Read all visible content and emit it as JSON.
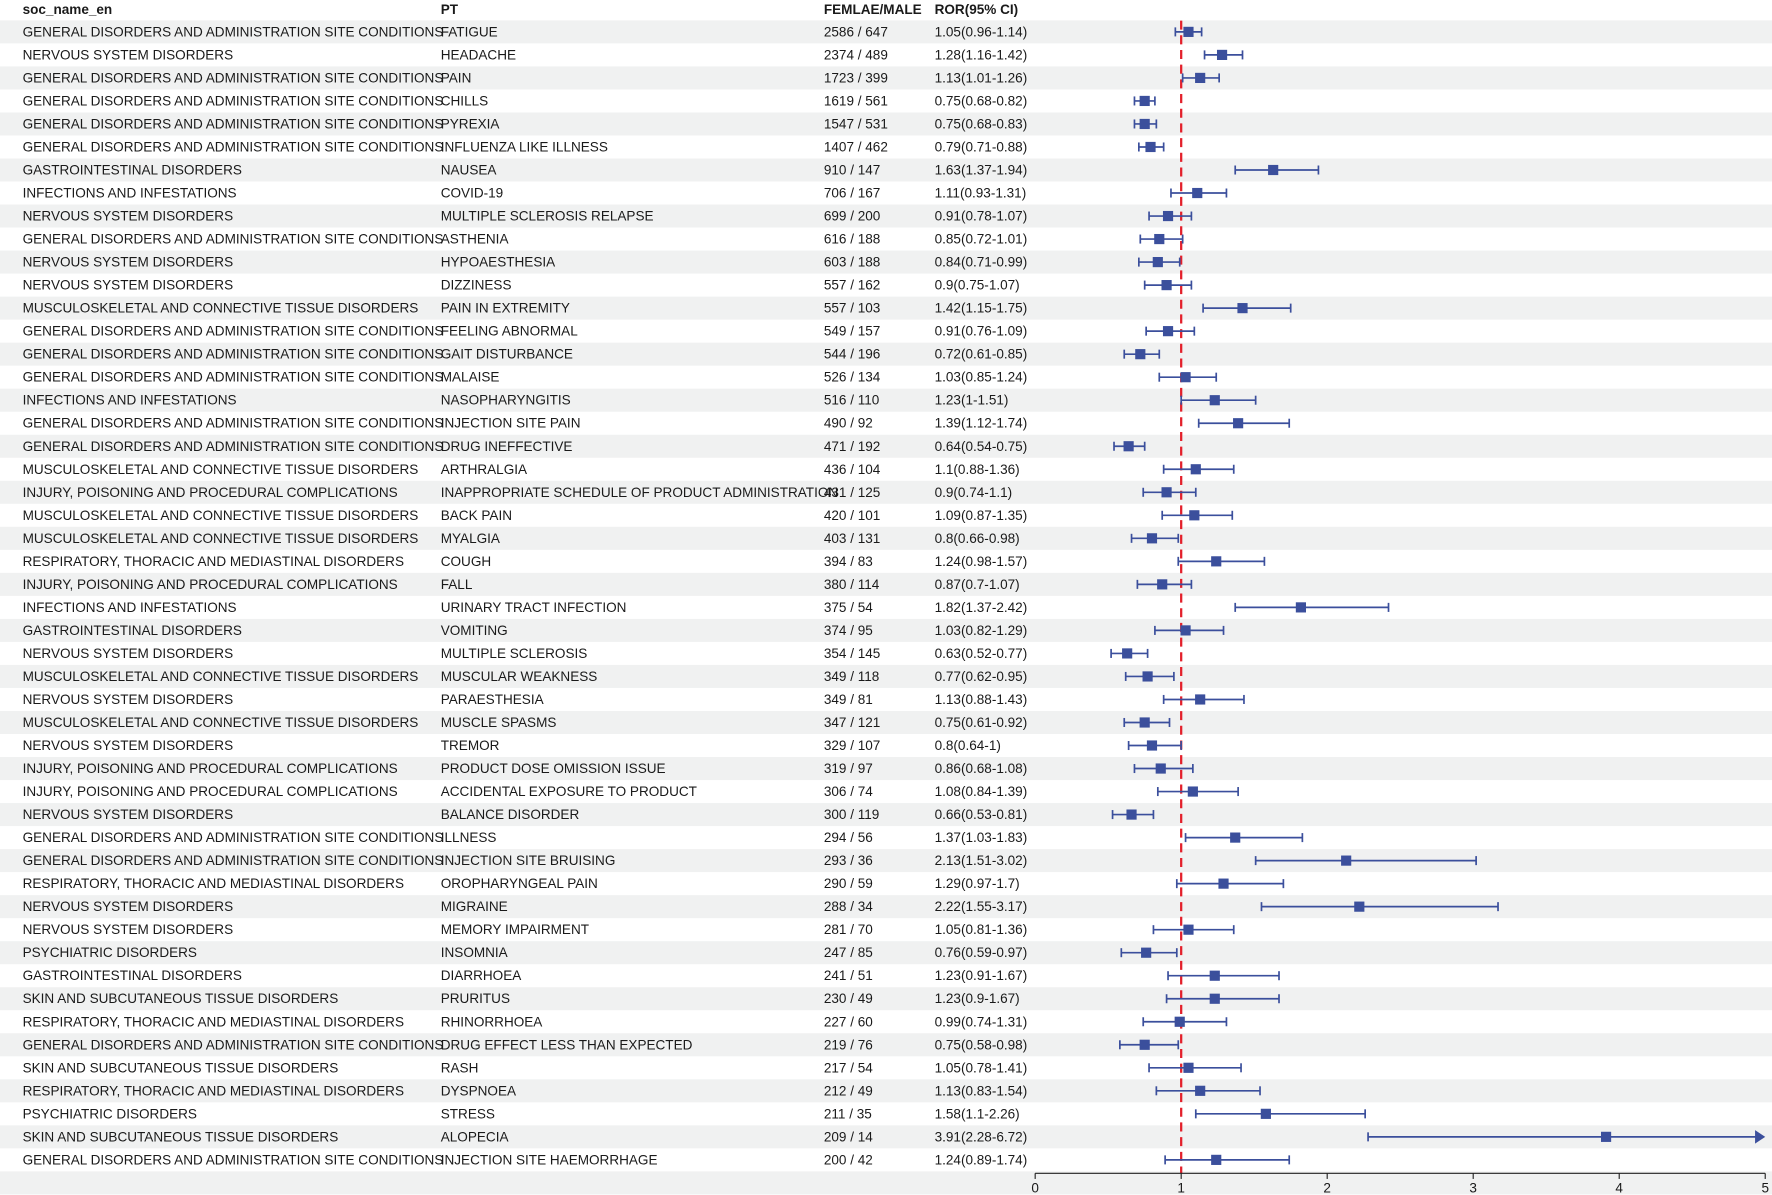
{
  "chart_data": {
    "type": "forest",
    "columns": [
      "soc_name_en",
      "PT",
      "FEMLAE/MALE",
      "ROR(95% CI)"
    ],
    "reference_line": 1,
    "xlim": [
      0,
      5
    ],
    "xticks": [
      "0",
      "1",
      "2",
      "3",
      "4",
      "5"
    ],
    "colors": {
      "point": "#3b4f9c",
      "reference": "#e3202b",
      "band": "#f0f1f1"
    },
    "rows": [
      {
        "soc": "GENERAL DISORDERS AND ADMINISTRATION SITE CONDITIONS",
        "pt": "FATIGUE",
        "counts": "2586 / 647",
        "ror_text": "1.05(0.96-1.14)",
        "ror": 1.05,
        "lo": 0.96,
        "hi": 1.14
      },
      {
        "soc": "NERVOUS SYSTEM DISORDERS",
        "pt": "HEADACHE",
        "counts": "2374 / 489",
        "ror_text": "1.28(1.16-1.42)",
        "ror": 1.28,
        "lo": 1.16,
        "hi": 1.42
      },
      {
        "soc": "GENERAL DISORDERS AND ADMINISTRATION SITE CONDITIONS",
        "pt": "PAIN",
        "counts": "1723 / 399",
        "ror_text": "1.13(1.01-1.26)",
        "ror": 1.13,
        "lo": 1.01,
        "hi": 1.26
      },
      {
        "soc": "GENERAL DISORDERS AND ADMINISTRATION SITE CONDITIONS",
        "pt": "CHILLS",
        "counts": "1619 / 561",
        "ror_text": "0.75(0.68-0.82)",
        "ror": 0.75,
        "lo": 0.68,
        "hi": 0.82
      },
      {
        "soc": "GENERAL DISORDERS AND ADMINISTRATION SITE CONDITIONS",
        "pt": "PYREXIA",
        "counts": "1547 / 531",
        "ror_text": "0.75(0.68-0.83)",
        "ror": 0.75,
        "lo": 0.68,
        "hi": 0.83
      },
      {
        "soc": "GENERAL DISORDERS AND ADMINISTRATION SITE CONDITIONS",
        "pt": "INFLUENZA LIKE ILLNESS",
        "counts": "1407 / 462",
        "ror_text": "0.79(0.71-0.88)",
        "ror": 0.79,
        "lo": 0.71,
        "hi": 0.88
      },
      {
        "soc": "GASTROINTESTINAL DISORDERS",
        "pt": "NAUSEA",
        "counts": "910 / 147",
        "ror_text": "1.63(1.37-1.94)",
        "ror": 1.63,
        "lo": 1.37,
        "hi": 1.94
      },
      {
        "soc": "INFECTIONS AND INFESTATIONS",
        "pt": "COVID-19",
        "counts": "706 / 167",
        "ror_text": "1.11(0.93-1.31)",
        "ror": 1.11,
        "lo": 0.93,
        "hi": 1.31
      },
      {
        "soc": "NERVOUS SYSTEM DISORDERS",
        "pt": "MULTIPLE SCLEROSIS RELAPSE",
        "counts": "699 / 200",
        "ror_text": "0.91(0.78-1.07)",
        "ror": 0.91,
        "lo": 0.78,
        "hi": 1.07
      },
      {
        "soc": "GENERAL DISORDERS AND ADMINISTRATION SITE CONDITIONS",
        "pt": "ASTHENIA",
        "counts": "616 / 188",
        "ror_text": "0.85(0.72-1.01)",
        "ror": 0.85,
        "lo": 0.72,
        "hi": 1.01
      },
      {
        "soc": "NERVOUS SYSTEM DISORDERS",
        "pt": "HYPOAESTHESIA",
        "counts": "603 / 188",
        "ror_text": "0.84(0.71-0.99)",
        "ror": 0.84,
        "lo": 0.71,
        "hi": 0.99
      },
      {
        "soc": "NERVOUS SYSTEM DISORDERS",
        "pt": "DIZZINESS",
        "counts": "557 / 162",
        "ror_text": "0.9(0.75-1.07)",
        "ror": 0.9,
        "lo": 0.75,
        "hi": 1.07
      },
      {
        "soc": "MUSCULOSKELETAL AND CONNECTIVE TISSUE DISORDERS",
        "pt": "PAIN IN EXTREMITY",
        "counts": "557 / 103",
        "ror_text": "1.42(1.15-1.75)",
        "ror": 1.42,
        "lo": 1.15,
        "hi": 1.75
      },
      {
        "soc": "GENERAL DISORDERS AND ADMINISTRATION SITE CONDITIONS",
        "pt": "FEELING ABNORMAL",
        "counts": "549 / 157",
        "ror_text": "0.91(0.76-1.09)",
        "ror": 0.91,
        "lo": 0.76,
        "hi": 1.09
      },
      {
        "soc": "GENERAL DISORDERS AND ADMINISTRATION SITE CONDITIONS",
        "pt": "GAIT DISTURBANCE",
        "counts": "544 / 196",
        "ror_text": "0.72(0.61-0.85)",
        "ror": 0.72,
        "lo": 0.61,
        "hi": 0.85
      },
      {
        "soc": "GENERAL DISORDERS AND ADMINISTRATION SITE CONDITIONS",
        "pt": "MALAISE",
        "counts": "526 / 134",
        "ror_text": "1.03(0.85-1.24)",
        "ror": 1.03,
        "lo": 0.85,
        "hi": 1.24
      },
      {
        "soc": "INFECTIONS AND INFESTATIONS",
        "pt": "NASOPHARYNGITIS",
        "counts": "516 / 110",
        "ror_text": "1.23(1-1.51)",
        "ror": 1.23,
        "lo": 1.0,
        "hi": 1.51
      },
      {
        "soc": "GENERAL DISORDERS AND ADMINISTRATION SITE CONDITIONS",
        "pt": "INJECTION SITE PAIN",
        "counts": "490 / 92",
        "ror_text": "1.39(1.12-1.74)",
        "ror": 1.39,
        "lo": 1.12,
        "hi": 1.74
      },
      {
        "soc": "GENERAL DISORDERS AND ADMINISTRATION SITE CONDITIONS",
        "pt": "DRUG INEFFECTIVE",
        "counts": "471 / 192",
        "ror_text": "0.64(0.54-0.75)",
        "ror": 0.64,
        "lo": 0.54,
        "hi": 0.75
      },
      {
        "soc": "MUSCULOSKELETAL AND CONNECTIVE TISSUE DISORDERS",
        "pt": "ARTHRALGIA",
        "counts": "436 / 104",
        "ror_text": "1.1(0.88-1.36)",
        "ror": 1.1,
        "lo": 0.88,
        "hi": 1.36
      },
      {
        "soc": "INJURY, POISONING AND PROCEDURAL COMPLICATIONS",
        "pt": "INAPPROPRIATE SCHEDULE OF PRODUCT ADMINISTRATION",
        "counts": "431 / 125",
        "ror_text": "0.9(0.74-1.1)",
        "ror": 0.9,
        "lo": 0.74,
        "hi": 1.1
      },
      {
        "soc": "MUSCULOSKELETAL AND CONNECTIVE TISSUE DISORDERS",
        "pt": "BACK PAIN",
        "counts": "420 / 101",
        "ror_text": "1.09(0.87-1.35)",
        "ror": 1.09,
        "lo": 0.87,
        "hi": 1.35
      },
      {
        "soc": "MUSCULOSKELETAL AND CONNECTIVE TISSUE DISORDERS",
        "pt": "MYALGIA",
        "counts": "403 / 131",
        "ror_text": "0.8(0.66-0.98)",
        "ror": 0.8,
        "lo": 0.66,
        "hi": 0.98
      },
      {
        "soc": "RESPIRATORY, THORACIC AND MEDIASTINAL DISORDERS",
        "pt": "COUGH",
        "counts": "394 / 83",
        "ror_text": "1.24(0.98-1.57)",
        "ror": 1.24,
        "lo": 0.98,
        "hi": 1.57
      },
      {
        "soc": "INJURY, POISONING AND PROCEDURAL COMPLICATIONS",
        "pt": "FALL",
        "counts": "380 / 114",
        "ror_text": "0.87(0.7-1.07)",
        "ror": 0.87,
        "lo": 0.7,
        "hi": 1.07
      },
      {
        "soc": "INFECTIONS AND INFESTATIONS",
        "pt": "URINARY TRACT INFECTION",
        "counts": "375 / 54",
        "ror_text": "1.82(1.37-2.42)",
        "ror": 1.82,
        "lo": 1.37,
        "hi": 2.42
      },
      {
        "soc": "GASTROINTESTINAL DISORDERS",
        "pt": "VOMITING",
        "counts": "374 / 95",
        "ror_text": "1.03(0.82-1.29)",
        "ror": 1.03,
        "lo": 0.82,
        "hi": 1.29
      },
      {
        "soc": "NERVOUS SYSTEM DISORDERS",
        "pt": "MULTIPLE SCLEROSIS",
        "counts": "354 / 145",
        "ror_text": "0.63(0.52-0.77)",
        "ror": 0.63,
        "lo": 0.52,
        "hi": 0.77
      },
      {
        "soc": "MUSCULOSKELETAL AND CONNECTIVE TISSUE DISORDERS",
        "pt": "MUSCULAR WEAKNESS",
        "counts": "349 / 118",
        "ror_text": "0.77(0.62-0.95)",
        "ror": 0.77,
        "lo": 0.62,
        "hi": 0.95
      },
      {
        "soc": "NERVOUS SYSTEM DISORDERS",
        "pt": "PARAESTHESIA",
        "counts": "349 / 81",
        "ror_text": "1.13(0.88-1.43)",
        "ror": 1.13,
        "lo": 0.88,
        "hi": 1.43
      },
      {
        "soc": "MUSCULOSKELETAL AND CONNECTIVE TISSUE DISORDERS",
        "pt": "MUSCLE SPASMS",
        "counts": "347 / 121",
        "ror_text": "0.75(0.61-0.92)",
        "ror": 0.75,
        "lo": 0.61,
        "hi": 0.92
      },
      {
        "soc": "NERVOUS SYSTEM DISORDERS",
        "pt": "TREMOR",
        "counts": "329 / 107",
        "ror_text": "0.8(0.64-1)",
        "ror": 0.8,
        "lo": 0.64,
        "hi": 1.0
      },
      {
        "soc": "INJURY, POISONING AND PROCEDURAL COMPLICATIONS",
        "pt": "PRODUCT DOSE OMISSION ISSUE",
        "counts": "319 / 97",
        "ror_text": "0.86(0.68-1.08)",
        "ror": 0.86,
        "lo": 0.68,
        "hi": 1.08
      },
      {
        "soc": "INJURY, POISONING AND PROCEDURAL COMPLICATIONS",
        "pt": "ACCIDENTAL EXPOSURE TO PRODUCT",
        "counts": "306 / 74",
        "ror_text": "1.08(0.84-1.39)",
        "ror": 1.08,
        "lo": 0.84,
        "hi": 1.39
      },
      {
        "soc": "NERVOUS SYSTEM DISORDERS",
        "pt": "BALANCE DISORDER",
        "counts": "300 / 119",
        "ror_text": "0.66(0.53-0.81)",
        "ror": 0.66,
        "lo": 0.53,
        "hi": 0.81
      },
      {
        "soc": "GENERAL DISORDERS AND ADMINISTRATION SITE CONDITIONS",
        "pt": "ILLNESS",
        "counts": "294 / 56",
        "ror_text": "1.37(1.03-1.83)",
        "ror": 1.37,
        "lo": 1.03,
        "hi": 1.83
      },
      {
        "soc": "GENERAL DISORDERS AND ADMINISTRATION SITE CONDITIONS",
        "pt": "INJECTION SITE BRUISING",
        "counts": "293 / 36",
        "ror_text": "2.13(1.51-3.02)",
        "ror": 2.13,
        "lo": 1.51,
        "hi": 3.02
      },
      {
        "soc": "RESPIRATORY, THORACIC AND MEDIASTINAL DISORDERS",
        "pt": "OROPHARYNGEAL PAIN",
        "counts": "290 / 59",
        "ror_text": "1.29(0.97-1.7)",
        "ror": 1.29,
        "lo": 0.97,
        "hi": 1.7
      },
      {
        "soc": "NERVOUS SYSTEM DISORDERS",
        "pt": "MIGRAINE",
        "counts": "288 / 34",
        "ror_text": "2.22(1.55-3.17)",
        "ror": 2.22,
        "lo": 1.55,
        "hi": 3.17
      },
      {
        "soc": "NERVOUS SYSTEM DISORDERS",
        "pt": "MEMORY IMPAIRMENT",
        "counts": "281 / 70",
        "ror_text": "1.05(0.81-1.36)",
        "ror": 1.05,
        "lo": 0.81,
        "hi": 1.36
      },
      {
        "soc": "PSYCHIATRIC DISORDERS",
        "pt": "INSOMNIA",
        "counts": "247 / 85",
        "ror_text": "0.76(0.59-0.97)",
        "ror": 0.76,
        "lo": 0.59,
        "hi": 0.97
      },
      {
        "soc": "GASTROINTESTINAL DISORDERS",
        "pt": "DIARRHOEA",
        "counts": "241 / 51",
        "ror_text": "1.23(0.91-1.67)",
        "ror": 1.23,
        "lo": 0.91,
        "hi": 1.67
      },
      {
        "soc": "SKIN AND SUBCUTANEOUS TISSUE DISORDERS",
        "pt": "PRURITUS",
        "counts": "230 / 49",
        "ror_text": "1.23(0.9-1.67)",
        "ror": 1.23,
        "lo": 0.9,
        "hi": 1.67
      },
      {
        "soc": "RESPIRATORY, THORACIC AND MEDIASTINAL DISORDERS",
        "pt": "RHINORRHOEA",
        "counts": "227 / 60",
        "ror_text": "0.99(0.74-1.31)",
        "ror": 0.99,
        "lo": 0.74,
        "hi": 1.31
      },
      {
        "soc": "GENERAL DISORDERS AND ADMINISTRATION SITE CONDITIONS",
        "pt": "DRUG EFFECT LESS THAN EXPECTED",
        "counts": "219 / 76",
        "ror_text": "0.75(0.58-0.98)",
        "ror": 0.75,
        "lo": 0.58,
        "hi": 0.98
      },
      {
        "soc": "SKIN AND SUBCUTANEOUS TISSUE DISORDERS",
        "pt": "RASH",
        "counts": "217 / 54",
        "ror_text": "1.05(0.78-1.41)",
        "ror": 1.05,
        "lo": 0.78,
        "hi": 1.41
      },
      {
        "soc": "RESPIRATORY, THORACIC AND MEDIASTINAL DISORDERS",
        "pt": "DYSPNOEA",
        "counts": "212 / 49",
        "ror_text": "1.13(0.83-1.54)",
        "ror": 1.13,
        "lo": 0.83,
        "hi": 1.54
      },
      {
        "soc": "PSYCHIATRIC DISORDERS",
        "pt": "STRESS",
        "counts": "211 / 35",
        "ror_text": "1.58(1.1-2.26)",
        "ror": 1.58,
        "lo": 1.1,
        "hi": 2.26
      },
      {
        "soc": "SKIN AND SUBCUTANEOUS TISSUE DISORDERS",
        "pt": "ALOPECIA",
        "counts": "209 / 14",
        "ror_text": "3.91(2.28-6.72)",
        "ror": 3.91,
        "lo": 2.28,
        "hi": 6.72
      },
      {
        "soc": "GENERAL DISORDERS AND ADMINISTRATION SITE CONDITIONS",
        "pt": "INJECTION SITE HAEMORRHAGE",
        "counts": "200 / 42",
        "ror_text": "1.24(0.89-1.74)",
        "ror": 1.24,
        "lo": 0.89,
        "hi": 1.74
      }
    ]
  }
}
